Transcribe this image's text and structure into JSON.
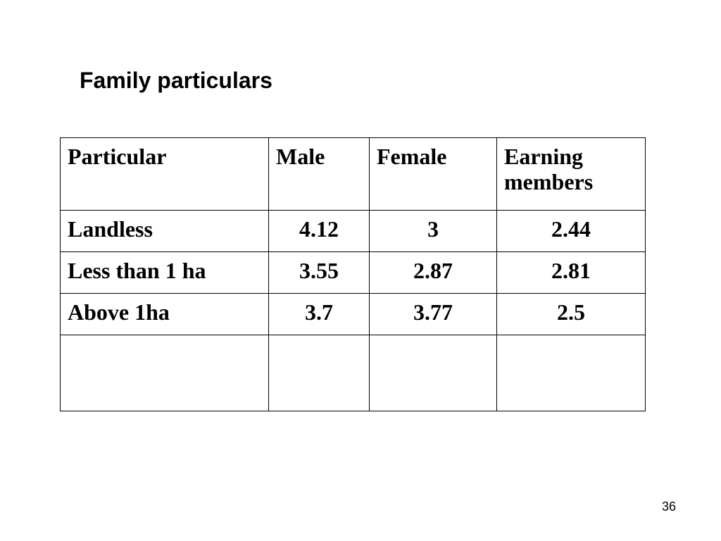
{
  "title": "Family particulars",
  "table": {
    "headers": [
      "Particular",
      "Male",
      "Female",
      "Earning members"
    ],
    "rows": [
      [
        "Landless",
        "4.12",
        "3",
        "2.44"
      ],
      [
        "Less than 1 ha",
        "3.55",
        "2.87",
        "2.81"
      ],
      [
        "Above 1ha",
        "3.7",
        "3.77",
        "2.5"
      ]
    ]
  },
  "page_number": "36"
}
